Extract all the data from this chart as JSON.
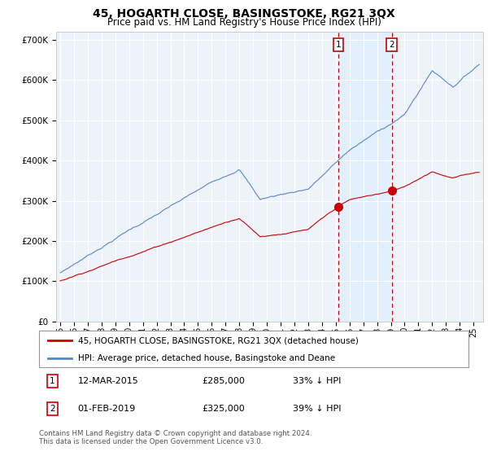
{
  "title": "45, HOGARTH CLOSE, BASINGSTOKE, RG21 3QX",
  "subtitle": "Price paid vs. HM Land Registry's House Price Index (HPI)",
  "title_fontsize": 10,
  "subtitle_fontsize": 8.5,
  "ylabel_ticks": [
    "£0",
    "£100K",
    "£200K",
    "£300K",
    "£400K",
    "£500K",
    "£600K",
    "£700K"
  ],
  "ylabel_values": [
    0,
    100000,
    200000,
    300000,
    400000,
    500000,
    600000,
    700000
  ],
  "ylim": [
    0,
    720000
  ],
  "hpi_color": "#5588cc",
  "hpi_fill_color": "#ddeeff",
  "price_color": "#cc0000",
  "legend_label_price": "45, HOGARTH CLOSE, BASINGSTOKE, RG21 3QX (detached house)",
  "legend_label_hpi": "HPI: Average price, detached house, Basingstoke and Deane",
  "marker1_date": 2015.19,
  "marker1_price": 285000,
  "marker1_label": "1",
  "marker2_date": 2019.08,
  "marker2_price": 325000,
  "marker2_label": "2",
  "footer": "Contains HM Land Registry data © Crown copyright and database right 2024.\nThis data is licensed under the Open Government Licence v3.0.",
  "background_color": "#eef3fa",
  "plot_bg_color": "#eef3fa"
}
